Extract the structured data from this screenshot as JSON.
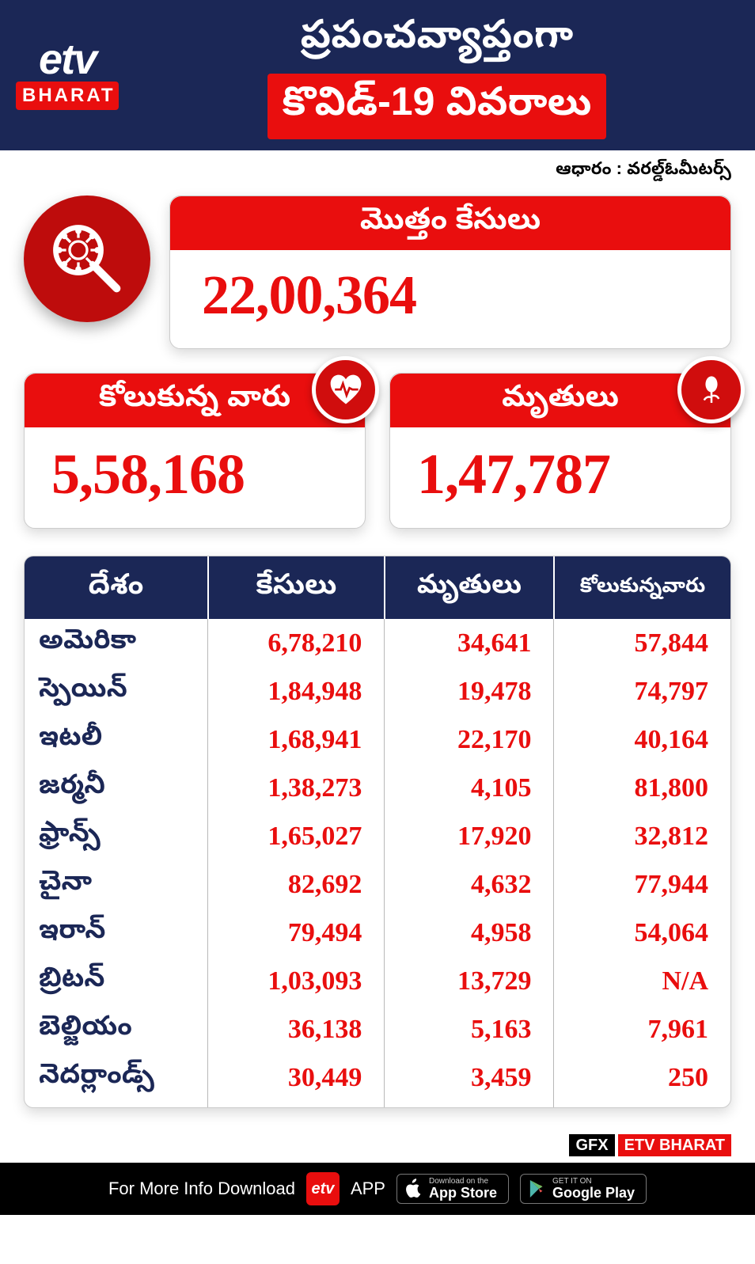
{
  "header": {
    "logo_top": "etv",
    "logo_bottom": "BHARAT",
    "title1": "ప్రపంచవ్యాప్తంగా",
    "title2": "కొవిడ్-19 వివరాలు"
  },
  "source_label": "ఆధారం : వరల్డ్ఓమీటర్స్",
  "total": {
    "label": "మొత్తం కేసులు",
    "value": "22,00,364"
  },
  "recovered": {
    "label": "కోలుకున్న వారు",
    "value": "5,58,168"
  },
  "deaths": {
    "label": "మృతులు",
    "value": "1,47,787"
  },
  "table": {
    "columns": [
      "దేశం",
      "కేసులు",
      "మృతులు",
      "కోలుకున్నవారు"
    ],
    "col_widths": [
      "26%",
      "25%",
      "24%",
      "25%"
    ],
    "rows": [
      [
        "అమెరికా",
        "6,78,210",
        "34,641",
        "57,844"
      ],
      [
        "స్పెయిన్",
        "1,84,948",
        "19,478",
        "74,797"
      ],
      [
        "ఇటలీ",
        "1,68,941",
        "22,170",
        "40,164"
      ],
      [
        "జర్మనీ",
        "1,38,273",
        "4,105",
        "81,800"
      ],
      [
        "ఫ్రాన్స్",
        "1,65,027",
        "17,920",
        "32,812"
      ],
      [
        "చైనా",
        "82,692",
        "4,632",
        "77,944"
      ],
      [
        "ఇరాన్",
        "79,494",
        "4,958",
        "54,064"
      ],
      [
        "బ్రిటన్",
        "1,03,093",
        "13,729",
        "N/A"
      ],
      [
        "బెల్జియం",
        "36,138",
        "5,163",
        "7,961"
      ],
      [
        "నెదర్లాండ్స్",
        "30,449",
        "3,459",
        "250"
      ]
    ]
  },
  "gfx": {
    "label1": "GFX",
    "label2": "ETV BHARAT"
  },
  "footer": {
    "text1": "For More Info Download",
    "text2": "APP",
    "appstore_t1": "Download on the",
    "appstore_t2": "App Store",
    "play_t1": "GET IT ON",
    "play_t2": "Google Play"
  },
  "colors": {
    "navy": "#1b2756",
    "red": "#e90e0e",
    "dark_red": "#be0c0c"
  }
}
